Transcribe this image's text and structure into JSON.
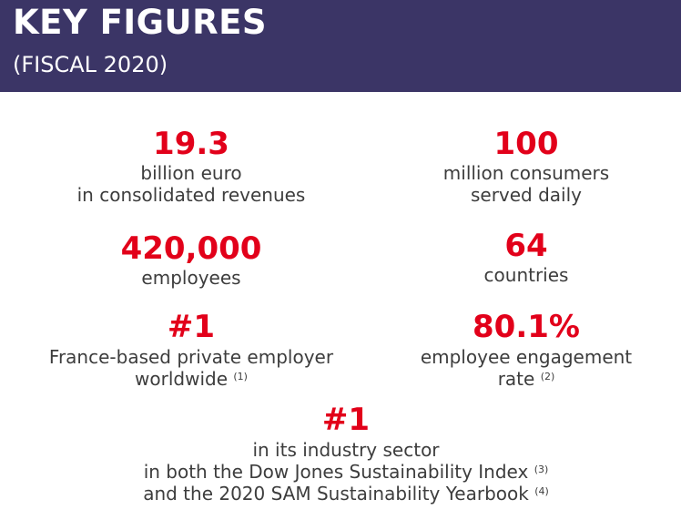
{
  "header": {
    "title": "KEY FIGURES",
    "subtitle": "(FISCAL 2020)"
  },
  "figures": {
    "revenue": {
      "value": "19.3",
      "line1": "billion euro",
      "line2": "in consolidated revenues"
    },
    "consumers": {
      "value": "100",
      "line1": "million consumers",
      "line2": "served daily"
    },
    "employees": {
      "value": "420,000",
      "line1": "employees"
    },
    "countries": {
      "value": "64",
      "line1": "countries"
    },
    "employer": {
      "value": "#1",
      "line1": "France-based private employer",
      "line2": "worldwide",
      "note": "(1)"
    },
    "engagement": {
      "value": "80.1%",
      "line1": "employee engagement",
      "line2": "rate",
      "note": "(2)"
    },
    "sector": {
      "value": "#1",
      "line1": "in its industry sector",
      "line2": "in both the Dow Jones Sustainability Index",
      "note2": "(3)",
      "line3": "and the 2020 SAM Sustainability Yearbook",
      "note3": "(4)"
    }
  },
  "colors": {
    "header_bg": "#3b3566",
    "accent_red": "#e2001a",
    "body_text": "#3d3d3d"
  }
}
